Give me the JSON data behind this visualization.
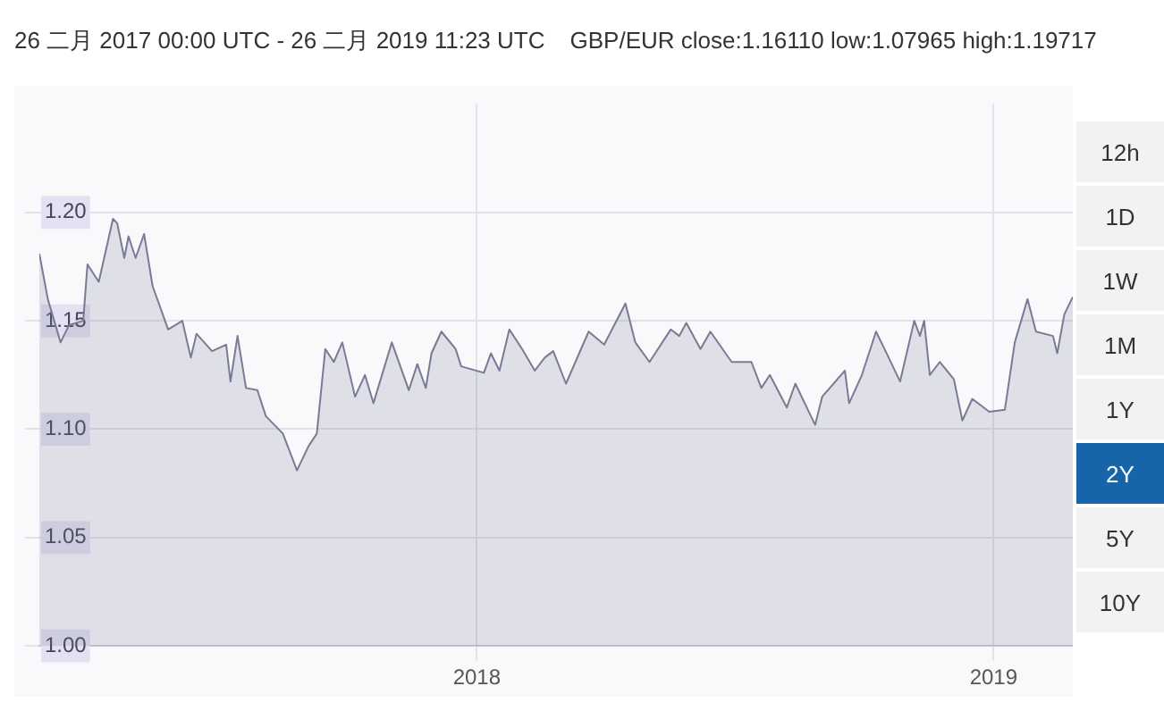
{
  "chart_data": {
    "type": "area",
    "title": "26 二月 2017 00:00 UTC - 26 二月 2019 11:23 UTC",
    "subtitle": "GBP/EUR close:1.16110 low:1.07965 high:1.19717",
    "annotations": [
      "12h",
      "1D",
      "1W",
      "1M",
      "1Y",
      "2Y",
      "5Y",
      "10Y"
    ],
    "x": [
      "2017-02-26",
      "2017-03-04",
      "2017-03-13",
      "2017-03-19",
      "2017-03-29",
      "2017-04-01",
      "2017-04-09",
      "2017-04-19",
      "2017-04-22",
      "2017-04-27",
      "2017-04-30",
      "2017-05-05",
      "2017-05-11",
      "2017-05-17",
      "2017-05-28",
      "2017-06-07",
      "2017-06-13",
      "2017-06-17",
      "2017-06-28",
      "2017-07-08",
      "2017-07-11",
      "2017-07-16",
      "2017-07-22",
      "2017-07-30",
      "2017-08-05",
      "2017-08-17",
      "2017-08-27",
      "2017-09-04",
      "2017-09-10",
      "2017-09-16",
      "2017-09-22",
      "2017-09-28",
      "2017-10-07",
      "2017-10-14",
      "2017-10-20",
      "2017-11-02",
      "2017-11-14",
      "2017-11-20",
      "2017-11-26",
      "2017-11-30",
      "2017-12-07",
      "2017-12-17",
      "2017-12-21",
      "2018-01-06",
      "2018-01-11",
      "2018-01-17",
      "2018-01-24",
      "2018-02-02",
      "2018-02-11",
      "2018-02-18",
      "2018-02-24",
      "2018-03-05",
      "2018-03-21",
      "2018-04-01",
      "2018-04-16",
      "2018-04-23",
      "2018-05-03",
      "2018-05-18",
      "2018-05-24",
      "2018-05-29",
      "2018-06-08",
      "2018-06-15",
      "2018-06-30",
      "2018-07-14",
      "2018-07-21",
      "2018-07-27",
      "2018-08-08",
      "2018-08-14",
      "2018-08-28",
      "2018-09-02",
      "2018-09-18",
      "2018-09-21",
      "2018-09-30",
      "2018-10-10",
      "2018-10-16",
      "2018-10-27",
      "2018-11-06",
      "2018-11-10",
      "2018-11-13",
      "2018-11-17",
      "2018-11-24",
      "2018-12-04",
      "2018-12-10",
      "2018-12-17",
      "2018-12-29",
      "2019-01-09",
      "2019-01-16",
      "2019-01-25",
      "2019-01-31",
      "2019-02-12",
      "2019-02-15",
      "2019-02-20",
      "2019-02-26"
    ],
    "series": [
      {
        "color": "#7a7a96",
        "values": [
          1.181,
          1.16,
          1.14,
          1.148,
          1.15,
          1.176,
          1.168,
          1.197,
          1.195,
          1.179,
          1.189,
          1.179,
          1.19,
          1.166,
          1.146,
          1.15,
          1.133,
          1.144,
          1.136,
          1.139,
          1.122,
          1.143,
          1.119,
          1.118,
          1.106,
          1.098,
          1.081,
          1.092,
          1.098,
          1.137,
          1.131,
          1.14,
          1.115,
          1.125,
          1.112,
          1.14,
          1.118,
          1.13,
          1.119,
          1.135,
          1.145,
          1.137,
          1.129,
          1.126,
          1.135,
          1.127,
          1.146,
          1.137,
          1.127,
          1.133,
          1.136,
          1.121,
          1.145,
          1.139,
          1.158,
          1.14,
          1.131,
          1.146,
          1.143,
          1.149,
          1.137,
          1.145,
          1.131,
          1.131,
          1.119,
          1.125,
          1.11,
          1.121,
          1.102,
          1.115,
          1.127,
          1.112,
          1.125,
          1.145,
          1.137,
          1.122,
          1.15,
          1.143,
          1.15,
          1.125,
          1.131,
          1.123,
          1.104,
          1.114,
          1.108,
          1.109,
          1.14,
          1.16,
          1.145,
          1.143,
          1.135,
          1.153,
          1.161
        ]
      }
    ],
    "xlim": [
      "2017-02-26",
      "2019-02-26"
    ],
    "xticks": [
      {
        "value": "2018-01-01",
        "label": "2018"
      },
      {
        "value": "2019-01-01",
        "label": "2019"
      }
    ],
    "ylim": [
      1.0,
      1.25
    ],
    "yticks": [
      {
        "value": 1.0,
        "label": "1.00"
      },
      {
        "value": 1.05,
        "label": "1.05"
      },
      {
        "value": 1.1,
        "label": "1.10"
      },
      {
        "value": 1.15,
        "label": "1.15"
      },
      {
        "value": 1.2,
        "label": "1.20"
      }
    ],
    "grid": true,
    "legend": false
  }
}
